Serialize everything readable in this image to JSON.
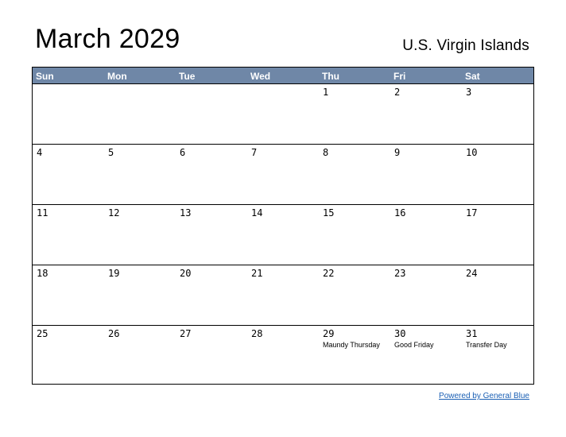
{
  "header": {
    "title": "March 2029",
    "region": "U.S. Virgin Islands"
  },
  "weekdays": [
    "Sun",
    "Mon",
    "Tue",
    "Wed",
    "Thu",
    "Fri",
    "Sat"
  ],
  "weeks": [
    [
      {
        "day": ""
      },
      {
        "day": ""
      },
      {
        "day": ""
      },
      {
        "day": ""
      },
      {
        "day": "1"
      },
      {
        "day": "2"
      },
      {
        "day": "3"
      }
    ],
    [
      {
        "day": "4"
      },
      {
        "day": "5"
      },
      {
        "day": "6"
      },
      {
        "day": "7"
      },
      {
        "day": "8"
      },
      {
        "day": "9"
      },
      {
        "day": "10"
      }
    ],
    [
      {
        "day": "11"
      },
      {
        "day": "12"
      },
      {
        "day": "13"
      },
      {
        "day": "14"
      },
      {
        "day": "15"
      },
      {
        "day": "16"
      },
      {
        "day": "17"
      }
    ],
    [
      {
        "day": "18"
      },
      {
        "day": "19"
      },
      {
        "day": "20"
      },
      {
        "day": "21"
      },
      {
        "day": "22"
      },
      {
        "day": "23"
      },
      {
        "day": "24"
      }
    ],
    [
      {
        "day": "25"
      },
      {
        "day": "26"
      },
      {
        "day": "27"
      },
      {
        "day": "28"
      },
      {
        "day": "29",
        "holiday": "Maundy Thursday"
      },
      {
        "day": "30",
        "holiday": "Good Friday"
      },
      {
        "day": "31",
        "holiday": "Transfer Day"
      }
    ]
  ],
  "footer": {
    "link_text": "Powered by General Blue"
  },
  "colors": {
    "header_bg": "#6f87a7",
    "link": "#1a5fb4"
  }
}
